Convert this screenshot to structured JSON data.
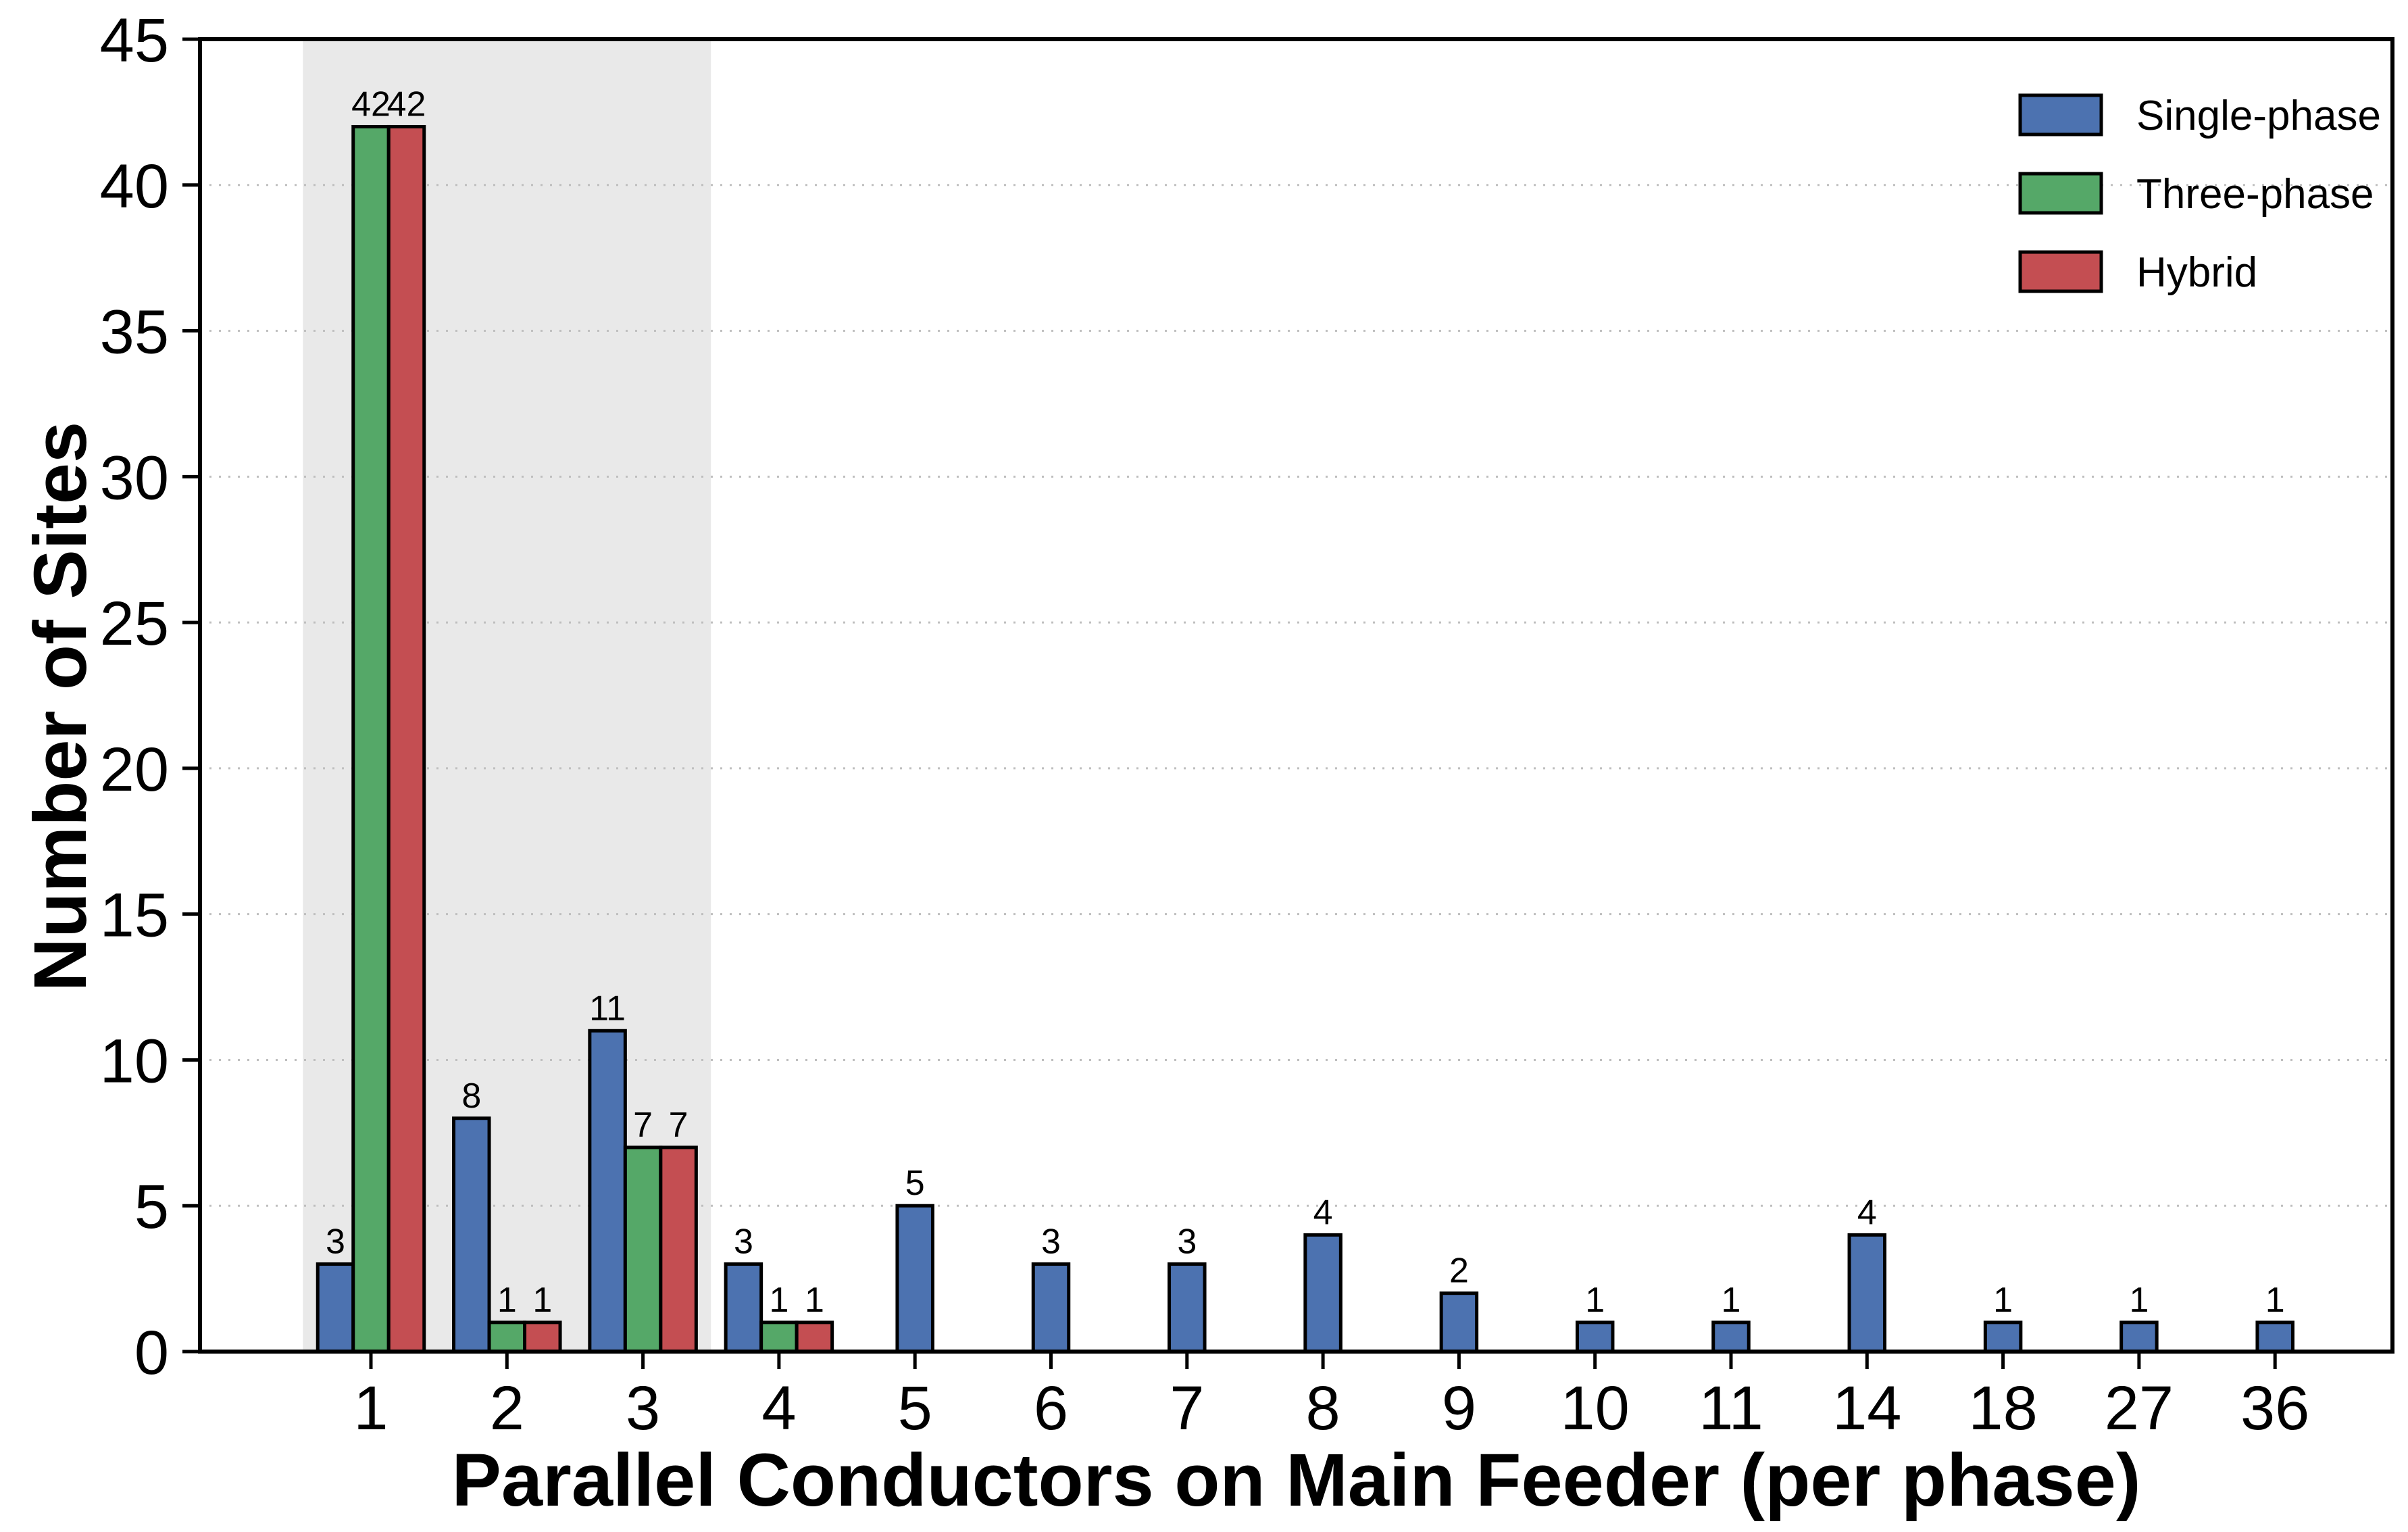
{
  "chart_data": {
    "type": "bar",
    "title": "",
    "xlabel": "Parallel Conductors on Main Feeder (per phase)",
    "ylabel": "Number of Sites",
    "categories": [
      "1",
      "2",
      "3",
      "4",
      "5",
      "6",
      "7",
      "8",
      "9",
      "10",
      "11",
      "14",
      "18",
      "27",
      "36"
    ],
    "series": [
      {
        "name": "Single-phase",
        "color": "#4C72B0",
        "values": [
          3,
          8,
          11,
          3,
          5,
          3,
          3,
          4,
          2,
          1,
          1,
          4,
          1,
          1,
          1
        ]
      },
      {
        "name": "Three-phase",
        "color": "#55A868",
        "values": [
          42,
          1,
          7,
          1,
          null,
          null,
          null,
          null,
          null,
          null,
          null,
          null,
          null,
          null,
          null
        ]
      },
      {
        "name": "Hybrid",
        "color": "#C44E52",
        "values": [
          42,
          1,
          7,
          1,
          null,
          null,
          null,
          null,
          null,
          null,
          null,
          null,
          null,
          null,
          null
        ]
      }
    ],
    "ylim": [
      0,
      45
    ],
    "yticks": [
      0,
      5,
      10,
      15,
      20,
      25,
      30,
      35,
      40,
      45
    ],
    "grid": "horizontal-dotted",
    "legend_position": "upper-right",
    "bar_value_labels": true,
    "highlight_band": {
      "from_category": "1",
      "to_category": "3",
      "color": "#e9e9e9"
    },
    "styles": {
      "bar_edge_color": "#000000",
      "spine_color": "#000000",
      "tick_color": "#000000",
      "grid_color": "#bfbfbf",
      "background": "#ffffff"
    }
  }
}
